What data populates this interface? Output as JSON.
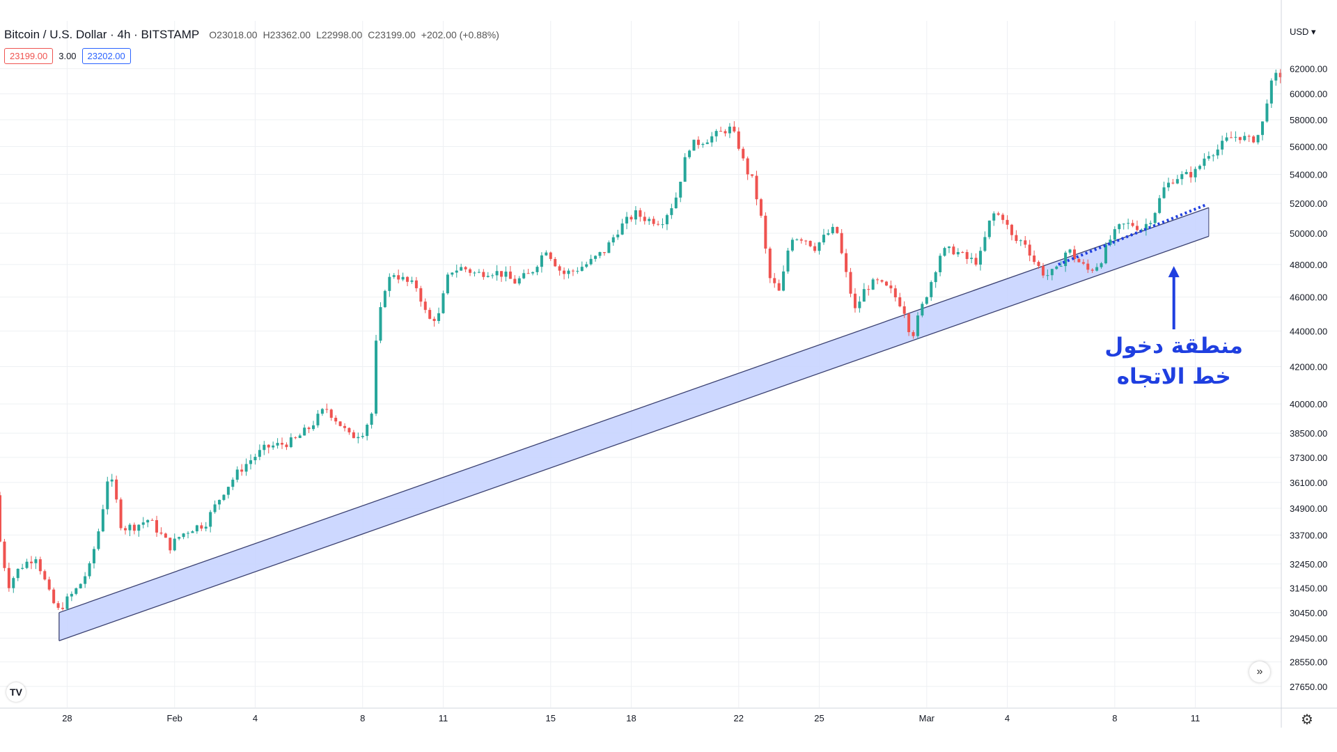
{
  "header": {
    "symbol": "Bitcoin / U.S. Dollar · 4h · BITSTAMP",
    "open": "O23018.00",
    "high": "H23362.00",
    "low": "L22998.00",
    "close": "C23199.00",
    "change": "+202.00 (+0.88%)",
    "bid": "23199.00",
    "spread": "3.00",
    "ask": "23202.00",
    "currency": "USD ▾"
  },
  "icons": {
    "logo": "tradingview-logo-icon",
    "scroll": "double-chevron-right-icon",
    "settings": "gear-icon"
  },
  "colors": {
    "up": "#26a69a",
    "down": "#ef5350",
    "channel_fill": "#c8d4ff",
    "channel_line": "#3a4070",
    "annotation": "#1f3fe0",
    "dotted": "#1f3fe0"
  },
  "chart_data": {
    "type": "candlestick",
    "title": "",
    "xlabel": "",
    "ylabel": "",
    "scale": "log",
    "ylim": [
      26900,
      66000
    ],
    "y_ticks": [
      62000,
      60000,
      58000,
      56000,
      54000,
      52000,
      50000,
      48000,
      46000,
      44000,
      42000,
      40000,
      38500,
      37300,
      36100,
      34900,
      33700,
      32450,
      31450,
      30450,
      29450,
      28550,
      27650
    ],
    "x_ticks": [
      "28",
      "Feb",
      "4",
      "8",
      "11",
      "15",
      "18",
      "22",
      "25",
      "Mar",
      "4",
      "8",
      "11"
    ],
    "x_tick_days": [
      0,
      4,
      7,
      11,
      14,
      18,
      21,
      25,
      28,
      32,
      35,
      39,
      42
    ],
    "x_range_days": [
      -2.5,
      45.2
    ],
    "grid": true,
    "price_anchors": [
      [
        -2.5,
        35500
      ],
      [
        -2.3,
        33000
      ],
      [
        -2.0,
        31600
      ],
      [
        -1.6,
        32300
      ],
      [
        -1.0,
        32800
      ],
      [
        -0.5,
        31200
      ],
      [
        -0.2,
        30500
      ],
      [
        0.2,
        31000
      ],
      [
        0.6,
        31500
      ],
      [
        1.0,
        32300
      ],
      [
        1.4,
        34200
      ],
      [
        1.7,
        36500
      ],
      [
        1.9,
        35800
      ],
      [
        2.2,
        34000
      ],
      [
        2.7,
        34100
      ],
      [
        3.2,
        34400
      ],
      [
        3.6,
        33800
      ],
      [
        4.0,
        33200
      ],
      [
        4.4,
        33700
      ],
      [
        4.8,
        34000
      ],
      [
        5.3,
        34200
      ],
      [
        6.0,
        35700
      ],
      [
        6.6,
        36700
      ],
      [
        7.1,
        37300
      ],
      [
        7.6,
        37800
      ],
      [
        8.0,
        37900
      ],
      [
        8.6,
        38100
      ],
      [
        9.2,
        38800
      ],
      [
        9.8,
        39800
      ],
      [
        10.3,
        39000
      ],
      [
        10.7,
        38300
      ],
      [
        11.2,
        38600
      ],
      [
        11.5,
        39500
      ],
      [
        11.7,
        44000
      ],
      [
        12.0,
        46600
      ],
      [
        12.3,
        47500
      ],
      [
        12.8,
        46900
      ],
      [
        13.2,
        46600
      ],
      [
        13.6,
        44600
      ],
      [
        14.0,
        44900
      ],
      [
        14.4,
        47600
      ],
      [
        14.9,
        47800
      ],
      [
        15.4,
        47400
      ],
      [
        15.9,
        47600
      ],
      [
        16.4,
        47400
      ],
      [
        16.8,
        46900
      ],
      [
        17.4,
        47400
      ],
      [
        18.0,
        49000
      ],
      [
        18.6,
        47400
      ],
      [
        19.0,
        47600
      ],
      [
        19.6,
        48100
      ],
      [
        20.2,
        48900
      ],
      [
        20.7,
        50300
      ],
      [
        21.3,
        51300
      ],
      [
        21.8,
        50900
      ],
      [
        22.3,
        50800
      ],
      [
        22.8,
        52200
      ],
      [
        23.3,
        56000
      ],
      [
        23.9,
        56500
      ],
      [
        24.4,
        56900
      ],
      [
        24.8,
        57400
      ],
      [
        25.1,
        56500
      ],
      [
        25.4,
        54500
      ],
      [
        25.7,
        53500
      ],
      [
        26.0,
        51000
      ],
      [
        26.3,
        47200
      ],
      [
        26.7,
        46200
      ],
      [
        27.1,
        49800
      ],
      [
        27.6,
        49700
      ],
      [
        28.0,
        49100
      ],
      [
        28.5,
        50000
      ],
      [
        28.8,
        50300
      ],
      [
        29.1,
        47800
      ],
      [
        29.5,
        45200
      ],
      [
        29.9,
        46600
      ],
      [
        30.3,
        46900
      ],
      [
        30.8,
        46400
      ],
      [
        31.3,
        45400
      ],
      [
        31.6,
        43600
      ],
      [
        31.9,
        45000
      ],
      [
        32.3,
        46800
      ],
      [
        32.7,
        48800
      ],
      [
        33.2,
        48900
      ],
      [
        33.7,
        48300
      ],
      [
        34.1,
        48200
      ],
      [
        34.6,
        51300
      ],
      [
        35.0,
        51100
      ],
      [
        35.4,
        49500
      ],
      [
        35.8,
        49500
      ],
      [
        36.2,
        48100
      ],
      [
        36.6,
        47300
      ],
      [
        37.0,
        47600
      ],
      [
        37.4,
        49000
      ],
      [
        37.8,
        48200
      ],
      [
        38.2,
        47600
      ],
      [
        38.6,
        48100
      ],
      [
        39.0,
        49600
      ],
      [
        39.4,
        50500
      ],
      [
        39.8,
        50600
      ],
      [
        40.2,
        50300
      ],
      [
        40.6,
        51200
      ],
      [
        41.0,
        53000
      ],
      [
        41.4,
        53800
      ],
      [
        41.8,
        53900
      ],
      [
        42.2,
        54200
      ],
      [
        42.6,
        55500
      ],
      [
        43.0,
        55800
      ],
      [
        43.4,
        56600
      ],
      [
        43.8,
        56800
      ],
      [
        44.2,
        56400
      ],
      [
        44.6,
        57000
      ],
      [
        44.9,
        60300
      ],
      [
        45.2,
        61500
      ]
    ],
    "channel": {
      "upper": [
        [
          -0.3,
          30450
        ],
        [
          42.5,
          51700
        ]
      ],
      "lower": [
        [
          -0.3,
          29350
        ],
        [
          42.5,
          49800
        ]
      ]
    },
    "dotted_line": [
      [
        36.9,
        48000
      ],
      [
        42.4,
        51900
      ]
    ],
    "annotation": {
      "lines": [
        "منطقة دخول",
        "خط الاتجاه"
      ],
      "arrow_from": [
        41.2,
        44100
      ],
      "arrow_to": [
        41.2,
        47900
      ]
    }
  }
}
